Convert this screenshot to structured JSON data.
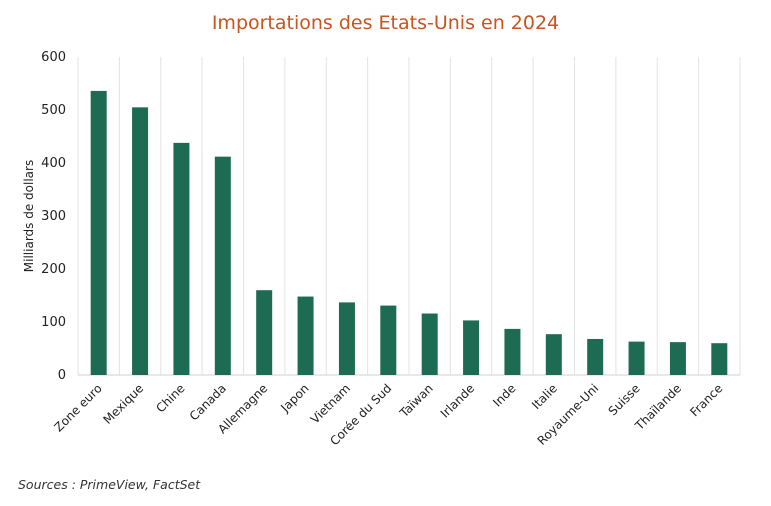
{
  "chart_data": {
    "type": "bar",
    "title": "Importations des Etats-Unis en 2024",
    "ylabel": "Milliards de dollars",
    "xlabel": "",
    "ylim": [
      0,
      600
    ],
    "yticks": [
      "0",
      "100",
      "200",
      "300",
      "400",
      "500",
      "600"
    ],
    "categories": [
      "Zone euro",
      "Mexique",
      "Chine",
      "Canada",
      "Allemagne",
      "Japon",
      "Vietnam",
      "Corée du Sud",
      "Taïwan",
      "Irlande",
      "Inde",
      "Italie",
      "Royaume-Uni",
      "Suisse",
      "Thaïlande",
      "France"
    ],
    "values": [
      536,
      505,
      438,
      412,
      160,
      148,
      137,
      131,
      116,
      103,
      87,
      77,
      68,
      63,
      62,
      60
    ],
    "grid": "vertical",
    "bar_color": "#1e6b54"
  },
  "footer": {
    "source": "Sources : PrimeView, FactSet"
  }
}
